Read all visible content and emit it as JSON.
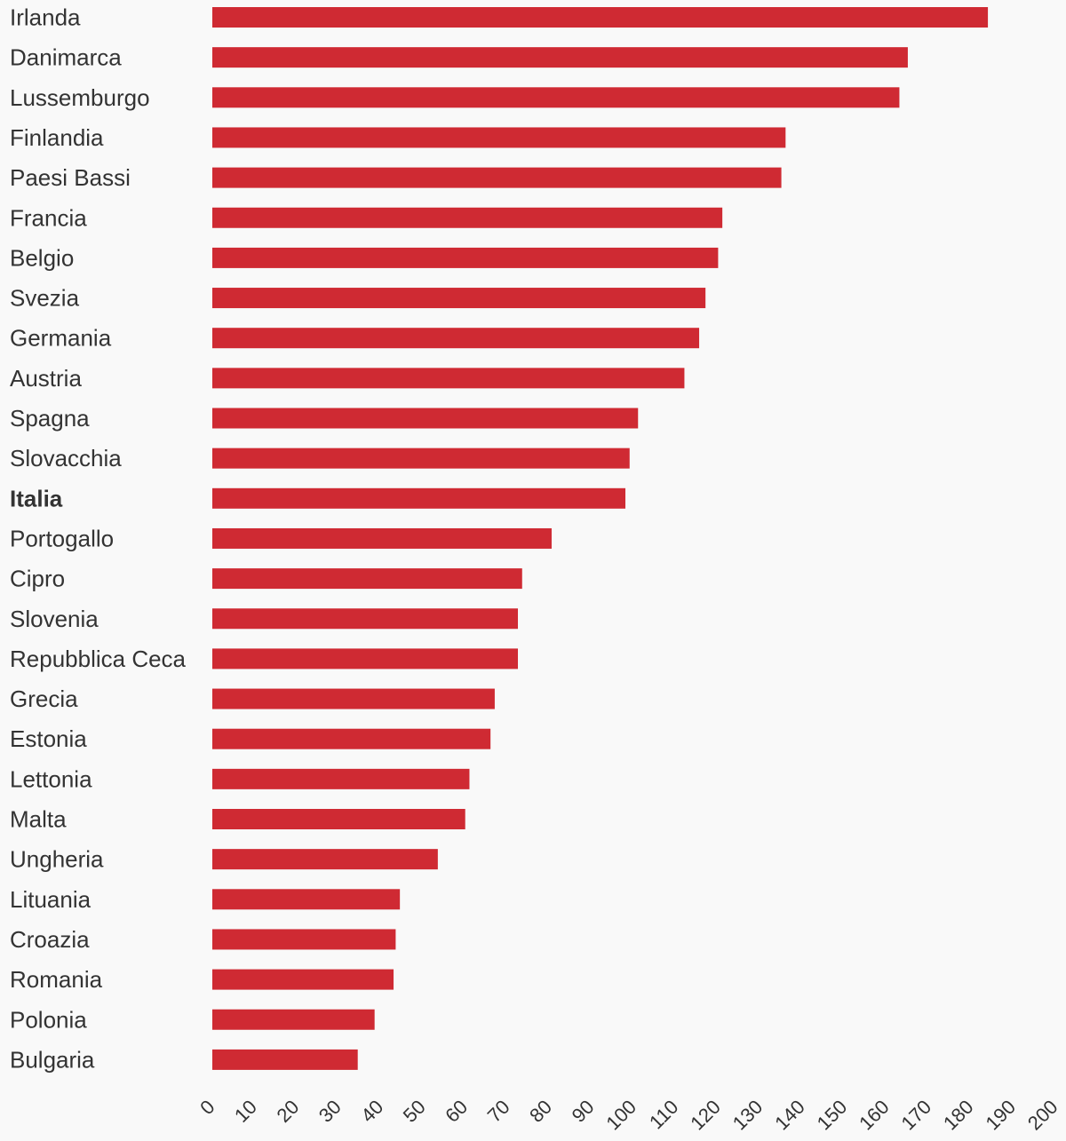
{
  "chart_data": {
    "type": "bar",
    "orientation": "horizontal",
    "categories": [
      "Irlanda",
      "Danimarca",
      "Lussemburgo",
      "Finlandia",
      "Paesi Bassi",
      "Francia",
      "Belgio",
      "Svezia",
      "Germania",
      "Austria",
      "Spagna",
      "Slovacchia",
      "Italia",
      "Portogallo",
      "Cipro",
      "Slovenia",
      "Repubblica Ceca",
      "Grecia",
      "Estonia",
      "Lettonia",
      "Malta",
      "Ungheria",
      "Lituania",
      "Croazia",
      "Romania",
      "Polonia",
      "Bulgaria"
    ],
    "values": [
      184,
      165,
      163,
      136,
      135,
      121,
      120,
      117,
      115.5,
      112,
      101,
      99,
      98,
      80.5,
      73.5,
      72.5,
      72.5,
      67,
      66,
      61,
      60,
      53.5,
      44.5,
      43.5,
      43,
      38.5,
      34.5
    ],
    "highlight": "Italia",
    "xlim": [
      0,
      200
    ],
    "xticks": [
      "0",
      "10",
      "20",
      "30",
      "40",
      "50",
      "60",
      "70",
      "80",
      "90",
      "100",
      "110",
      "120",
      "130",
      "140",
      "150",
      "160",
      "170",
      "180",
      "190",
      "200"
    ],
    "title": "",
    "xlabel": "",
    "ylabel": "",
    "grid": false,
    "legend": "none",
    "colors": {
      "bar": "#cf2a33",
      "background": "#f9f9f9",
      "label": "#333333"
    }
  }
}
